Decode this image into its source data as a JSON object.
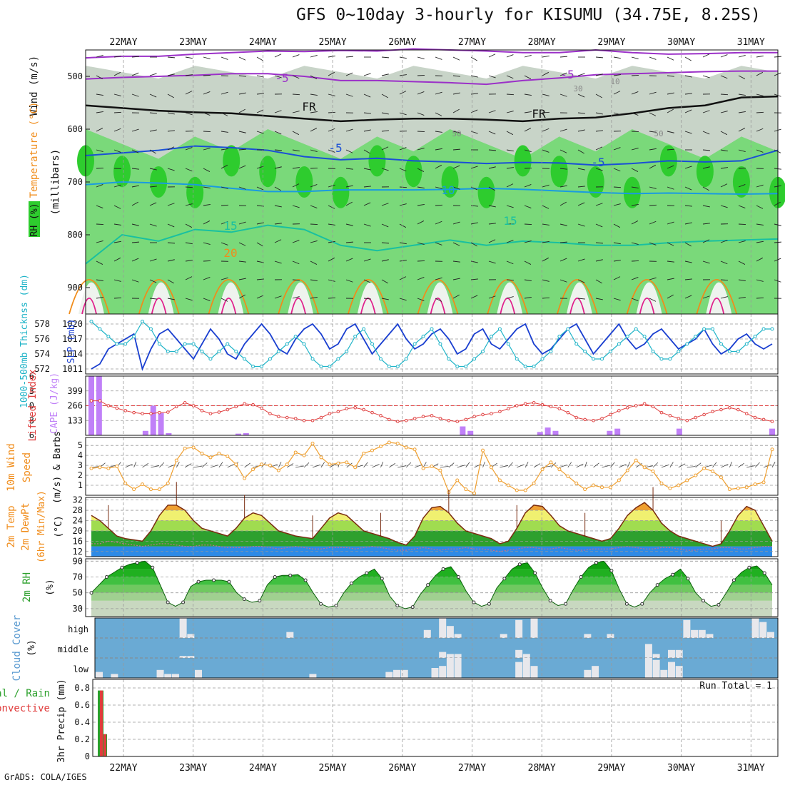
{
  "title": "GFS 0~10day 3-hourly for KISUMU (34.75E, 8.25S)",
  "footer": "GrADS: COLA/IGES",
  "dates": [
    "22MAY",
    "23MAY",
    "24MAY",
    "25MAY",
    "26MAY",
    "27MAY",
    "28MAY",
    "29MAY",
    "30MAY",
    "31MAY"
  ],
  "colors": {
    "rh_dark": "#2ecc2e",
    "rh_mid": "#7ad97a",
    "rh_light": "#c8d4c8",
    "purple": "#9b30c8",
    "blue": "#1a4fd6",
    "lightblue": "#1a9be0",
    "teal": "#19c0a0",
    "orange": "#f08c1a",
    "magenta": "#e0208c",
    "slp": "#1a3fd0",
    "thickness": "#20b4c8",
    "cape": "#c080f8",
    "li": "#e04040",
    "wind": "#f0a030",
    "cloud_bg": "#6aaad4",
    "precip_total": "#2ca02c",
    "precip_conv": "#e03c3c"
  },
  "chart_data": [
    {
      "panel": "upper_air",
      "type": "heatmap",
      "ylabel": "(millibars)",
      "axis_labels": {
        "rh": "RH (%)",
        "temperature": "Temperature (°C)",
        "wind": "Wind (m/s)"
      },
      "yticks": [
        500,
        600,
        700,
        800,
        900
      ],
      "ylim": [
        450,
        950
      ],
      "contour_labels": [
        "-5",
        "-5",
        "FR",
        "FR",
        "-5",
        "-5",
        "10",
        "15",
        "15",
        "20",
        "30",
        "10",
        "50",
        "50"
      ],
      "isotherms": [
        {
          "name": "-10",
          "p": [
            465,
            462,
            462,
            458,
            455,
            452,
            453,
            451,
            452,
            448,
            450,
            452,
            455,
            455,
            450,
            455,
            458,
            457,
            455,
            455
          ]
        },
        {
          "name": "-5",
          "p": [
            505,
            502,
            500,
            498,
            495,
            495,
            500,
            508,
            508,
            510,
            512,
            515,
            508,
            503,
            497,
            495,
            493,
            491,
            490,
            490
          ]
        },
        {
          "name": "FR",
          "p": [
            555,
            560,
            565,
            568,
            570,
            575,
            580,
            585,
            582,
            580,
            580,
            582,
            585,
            580,
            578,
            570,
            560,
            555,
            540,
            538
          ]
        },
        {
          "name": "5",
          "p": [
            650,
            645,
            640,
            632,
            635,
            640,
            652,
            658,
            655,
            660,
            662,
            665,
            663,
            664,
            668,
            665,
            660,
            662,
            660,
            640
          ]
        },
        {
          "name": "10",
          "p": [
            705,
            700,
            702,
            705,
            712,
            718,
            718,
            715,
            715,
            715,
            714,
            712,
            714,
            717,
            720,
            722,
            721,
            722,
            723,
            722
          ]
        },
        {
          "name": "15",
          "p": [
            855,
            800,
            812,
            790,
            795,
            782,
            790,
            820,
            830,
            820,
            810,
            820,
            812,
            815,
            820,
            820,
            815,
            812,
            810,
            808
          ]
        }
      ],
      "rh_bands": {
        "high_pct": 90,
        "mid_pct": 70,
        "low_pct": 50
      }
    },
    {
      "panel": "slp_thickness",
      "type": "line",
      "labels": {
        "thickness": "1000-500mb Thicknss (dm)",
        "slp": "SLP (mb)"
      },
      "yticks_slp": [
        1011,
        1014,
        1017,
        1020
      ],
      "yticks_thickness": [
        572,
        574,
        576,
        578
      ],
      "series": [
        {
          "name": "SLP",
          "values": [
            1011,
            1012,
            1015,
            1016,
            1017,
            1018,
            1011,
            1015,
            1018,
            1019,
            1017,
            1015,
            1013,
            1016,
            1019,
            1017,
            1014,
            1013,
            1016,
            1018,
            1020,
            1018,
            1015,
            1014,
            1017,
            1019,
            1020,
            1018,
            1015,
            1016,
            1019,
            1020,
            1017,
            1014,
            1016,
            1018,
            1020,
            1017,
            1015,
            1016,
            1018,
            1019,
            1017,
            1014,
            1015,
            1018,
            1019,
            1016,
            1015,
            1017,
            1019,
            1020,
            1016,
            1014,
            1015,
            1017,
            1019,
            1020,
            1017,
            1014,
            1016,
            1018,
            1020,
            1017,
            1015,
            1016,
            1018,
            1019,
            1017,
            1015,
            1016,
            1017,
            1019,
            1016,
            1014,
            1015,
            1017,
            1018,
            1016,
            1015,
            1016
          ]
        },
        {
          "name": "Thickness",
          "values": [
            578,
            577,
            576,
            575,
            575,
            576,
            578,
            577,
            575,
            574,
            574,
            575,
            575,
            574,
            573,
            574,
            575,
            574,
            573,
            572,
            572,
            573,
            574,
            575,
            576,
            575,
            573,
            572,
            572,
            573,
            574,
            576,
            577,
            575,
            573,
            572,
            572,
            573,
            575,
            576,
            577,
            575,
            573,
            572,
            572,
            573,
            574,
            576,
            577,
            575,
            573,
            572,
            572,
            573,
            574,
            576,
            577,
            575,
            574,
            573,
            573,
            574,
            575,
            576,
            577,
            576,
            574,
            573,
            573,
            574,
            575,
            576,
            577,
            577,
            575,
            574,
            574,
            575,
            576,
            577,
            577
          ]
        }
      ]
    },
    {
      "panel": "cape_li",
      "type": "bar",
      "labels": {
        "li": "Lifted Index",
        "cape": "CAPE (J/kg)"
      },
      "yticks_cape": [
        133,
        266,
        399
      ],
      "yticks_li": [
        -6,
        -3,
        0,
        3,
        6
      ],
      "cape_bars": [
        {
          "i": 0,
          "v": 532
        },
        {
          "i": 1,
          "v": 532
        },
        {
          "i": 7,
          "v": 40
        },
        {
          "i": 8,
          "v": 266
        },
        {
          "i": 9,
          "v": 200
        },
        {
          "i": 10,
          "v": 20
        },
        {
          "i": 19,
          "v": 15
        },
        {
          "i": 20,
          "v": 20
        },
        {
          "i": 48,
          "v": 80
        },
        {
          "i": 49,
          "v": 40
        },
        {
          "i": 58,
          "v": 30
        },
        {
          "i": 59,
          "v": 70
        },
        {
          "i": 60,
          "v": 40
        },
        {
          "i": 67,
          "v": 40
        },
        {
          "i": 68,
          "v": 60
        },
        {
          "i": 76,
          "v": 60
        },
        {
          "i": 88,
          "v": 60
        }
      ],
      "lifted_index": [
        2,
        2,
        3,
        3.5,
        4,
        4.4,
        4.6,
        4.6,
        4.4,
        4.3,
        3.2,
        2.4,
        3,
        4,
        4.6,
        4.3,
        3.8,
        3.2,
        2.6,
        2.8,
        3.5,
        4.6,
        5.2,
        5.4,
        5.6,
        6.0,
        6.0,
        5.4,
        4.6,
        4.2,
        3.6,
        3.4,
        3.8,
        4.4,
        5.0,
        5.8,
        6.2,
        6.0,
        5.6,
        5.2,
        5.0,
        5.6,
        6.0,
        6.2,
        5.8,
        5.2,
        4.8,
        4.6,
        4.2,
        3.6,
        3.0,
        2.6,
        2.4,
        2.8,
        3.2,
        3.6,
        4.4,
        5.4,
        5.8,
        6.0,
        5.6,
        4.8,
        4.0,
        3.4,
        3.0,
        2.6,
        3.2,
        4.4,
        5.0,
        5.6,
        6.0,
        5.4,
        4.8,
        4.2,
        3.8,
        3.4,
        3.8,
        4.6,
        5.4,
        5.8,
        6.2
      ]
    },
    {
      "panel": "wind10m",
      "type": "line",
      "labels": {
        "wind": "10m Wind",
        "speed": "Speed",
        "barbs": "(m/s) & Barbs"
      },
      "yticks": [
        1,
        2,
        3,
        4,
        5
      ],
      "ylim": [
        0,
        5.8
      ],
      "values": [
        2.7,
        2.8,
        2.7,
        2.9,
        1.2,
        0.6,
        1.1,
        0.6,
        0.6,
        1.2,
        3.5,
        4.7,
        4.8,
        4.2,
        3.8,
        4.2,
        3.9,
        3.1,
        1.7,
        2.6,
        3.1,
        3.0,
        2.5,
        3.1,
        4.3,
        4.0,
        5.2,
        3.8,
        3.1,
        3.2,
        3.3,
        2.8,
        4.2,
        4.5,
        4.9,
        5.3,
        5.2,
        4.8,
        4.6,
        2.7,
        2.9,
        2.5,
        0.3,
        1.5,
        0.6,
        0.2,
        4.5,
        2.8,
        1.5,
        1.0,
        0.5,
        0.5,
        1.2,
        2.6,
        3.3,
        2.6,
        1.9,
        1.2,
        0.6,
        1.0,
        0.8,
        0.8,
        1.5,
        2.5,
        3.5,
        2.8,
        2.4,
        1.2,
        0.7,
        1.0,
        1.5,
        2.0,
        2.7,
        2.4,
        1.8,
        0.6,
        0.7,
        0.8,
        1.1,
        1.3,
        4.6
      ]
    },
    {
      "panel": "temp2m",
      "type": "area",
      "labels": {
        "temp": "2m Temp",
        "dewpt": "2m DewPt",
        "minmax": "(6hr Min/Max)",
        "unit": "(°C)"
      },
      "yticks": [
        12,
        16,
        20,
        24,
        28,
        32
      ],
      "ylim": [
        10,
        33
      ],
      "temperature": [
        26,
        24,
        21,
        18,
        17,
        16.5,
        16,
        20,
        26,
        30,
        30,
        28,
        24,
        21,
        20,
        19,
        18,
        21,
        25,
        27,
        26,
        23,
        20,
        19,
        18,
        17.5,
        17,
        21,
        25,
        27,
        26,
        23,
        20,
        19,
        18,
        17,
        15.5,
        14.5,
        18,
        25,
        29,
        29.5,
        27,
        23,
        20,
        19,
        18,
        17,
        15,
        16,
        21,
        27,
        30,
        29.5,
        26,
        22,
        20,
        19,
        18,
        17,
        16,
        17,
        21,
        26,
        29,
        31,
        28,
        23,
        20,
        18,
        17,
        16,
        15,
        14,
        15,
        20,
        26,
        29.5,
        28,
        22,
        16
      ],
      "dewpoint": [
        15,
        15,
        16,
        15.5,
        15,
        14.5,
        14,
        14.5,
        15,
        15,
        14.5,
        14,
        14,
        14.5,
        14.5,
        14,
        13.5,
        13.5,
        13.5,
        14,
        14,
        13.5,
        13,
        13.5,
        14,
        13.5,
        13,
        13,
        13.5,
        13.5,
        13.5,
        13,
        13.5,
        14,
        13.5,
        13,
        12.5,
        12.5,
        13,
        13.5,
        13,
        12.5,
        13,
        13,
        13.5,
        13,
        13,
        12.5,
        12,
        12.5,
        13,
        13.5,
        13.5,
        13,
        13,
        13.5,
        13,
        12.5,
        12.5,
        13,
        13,
        13,
        13.5,
        14,
        13.5,
        13,
        13,
        13.5,
        13.5,
        13,
        12.5,
        12.5,
        13,
        13,
        13.5,
        13.5,
        13,
        13,
        13.5,
        14,
        14
      ]
    },
    {
      "panel": "rh2m",
      "type": "area",
      "label": "2m RH",
      "unit": "(%)",
      "yticks": [
        30,
        50,
        70,
        90
      ],
      "ylim": [
        20,
        93
      ],
      "values": [
        50,
        60,
        70,
        76,
        82,
        86,
        88,
        90,
        82,
        60,
        38,
        33,
        38,
        58,
        64,
        66,
        66,
        66,
        64,
        50,
        42,
        38,
        40,
        60,
        70,
        72,
        72,
        73,
        66,
        50,
        36,
        32,
        34,
        50,
        62,
        70,
        75,
        80,
        68,
        46,
        34,
        30,
        32,
        48,
        60,
        72,
        80,
        83,
        70,
        52,
        38,
        33,
        36,
        56,
        68,
        80,
        86,
        88,
        75,
        56,
        40,
        34,
        36,
        54,
        70,
        82,
        88,
        90,
        78,
        55,
        36,
        32,
        36,
        50,
        60,
        68,
        73,
        80,
        68,
        50,
        40,
        33,
        35,
        50,
        66,
        76,
        82,
        84,
        75,
        60
      ]
    },
    {
      "panel": "cloud_cover",
      "type": "bar",
      "label": "Cloud Cover",
      "unit": "(%)",
      "levels": [
        "high",
        "middle",
        "low"
      ],
      "high": [
        {
          "i": 11,
          "v": 100
        },
        {
          "i": 12,
          "v": 20
        },
        {
          "i": 25,
          "v": 30
        },
        {
          "i": 43,
          "v": 40
        },
        {
          "i": 45,
          "v": 100
        },
        {
          "i": 46,
          "v": 60
        },
        {
          "i": 47,
          "v": 20
        },
        {
          "i": 53,
          "v": 20
        },
        {
          "i": 55,
          "v": 90
        },
        {
          "i": 57,
          "v": 100
        },
        {
          "i": 64,
          "v": 20
        },
        {
          "i": 67,
          "v": 20
        },
        {
          "i": 77,
          "v": 90
        },
        {
          "i": 78,
          "v": 40
        },
        {
          "i": 79,
          "v": 40
        },
        {
          "i": 80,
          "v": 20
        },
        {
          "i": 86,
          "v": 100
        },
        {
          "i": 87,
          "v": 80
        },
        {
          "i": 88,
          "v": 30
        }
      ],
      "middle": [
        {
          "i": 11,
          "v": 10
        },
        {
          "i": 12,
          "v": 10
        },
        {
          "i": 45,
          "v": 30
        },
        {
          "i": 46,
          "v": 20
        },
        {
          "i": 47,
          "v": 20
        },
        {
          "i": 55,
          "v": 40
        },
        {
          "i": 56,
          "v": 20
        },
        {
          "i": 72,
          "v": 70
        },
        {
          "i": 73,
          "v": 20
        },
        {
          "i": 75,
          "v": 40
        },
        {
          "i": 76,
          "v": 40
        }
      ],
      "low": [
        {
          "i": 0,
          "v": 30
        },
        {
          "i": 2,
          "v": 20
        },
        {
          "i": 8,
          "v": 40
        },
        {
          "i": 9,
          "v": 20
        },
        {
          "i": 10,
          "v": 20
        },
        {
          "i": 13,
          "v": 40
        },
        {
          "i": 28,
          "v": 20
        },
        {
          "i": 38,
          "v": 30
        },
        {
          "i": 39,
          "v": 40
        },
        {
          "i": 40,
          "v": 40
        },
        {
          "i": 44,
          "v": 50
        },
        {
          "i": 45,
          "v": 60
        },
        {
          "i": 46,
          "v": 100
        },
        {
          "i": 47,
          "v": 100
        },
        {
          "i": 55,
          "v": 80
        },
        {
          "i": 56,
          "v": 100
        },
        {
          "i": 57,
          "v": 60
        },
        {
          "i": 64,
          "v": 40
        },
        {
          "i": 65,
          "v": 60
        },
        {
          "i": 72,
          "v": 100
        },
        {
          "i": 73,
          "v": 90
        },
        {
          "i": 74,
          "v": 40
        },
        {
          "i": 75,
          "v": 80
        },
        {
          "i": 76,
          "v": 60
        }
      ]
    },
    {
      "panel": "precip3hr",
      "type": "bar",
      "labels": {
        "total": "Total / Rain",
        "conv": "Convective",
        "ylabel": "3hr Precip (mm)"
      },
      "run_total": "Run Total = 1",
      "yticks": [
        0,
        0.2,
        0.4,
        0.6,
        0.8
      ],
      "ylim": [
        0,
        0.9
      ],
      "series": [
        {
          "name": "Total / Rain",
          "values": [
            {
              "i": 1,
              "v": 0.77
            },
            {
              "i": 2,
              "v": 0.26
            }
          ]
        },
        {
          "name": "Convective",
          "values": [
            {
              "i": 1,
              "v": 0.77
            },
            {
              "i": 2,
              "v": 0.26
            }
          ]
        }
      ]
    }
  ]
}
